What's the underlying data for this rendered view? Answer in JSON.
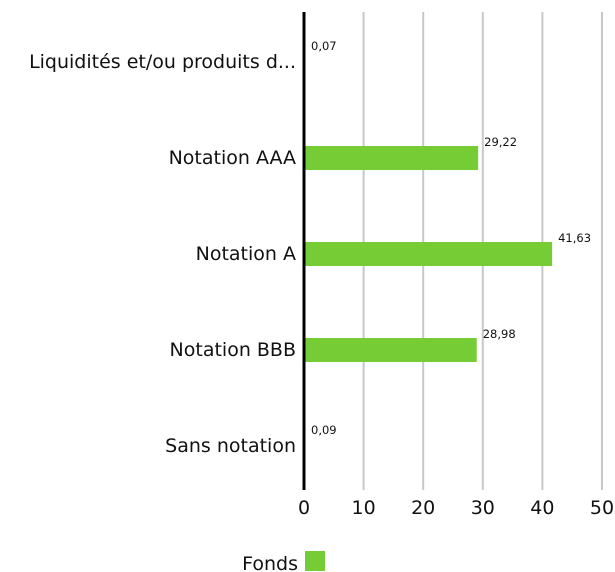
{
  "chart_data": {
    "type": "bar",
    "orientation": "horizontal",
    "categories": [
      "Liquidités et/ou produits d...",
      "Notation AAA",
      "Notation A",
      "Notation BBB",
      "Sans notation"
    ],
    "series": [
      {
        "name": "Fonds",
        "color": "#76cc35",
        "values": [
          0.07,
          29.22,
          41.63,
          28.98,
          0.09
        ],
        "value_labels": [
          "0,07",
          "29,22",
          "41,63",
          "28,98",
          "0,09"
        ]
      }
    ],
    "xlim": [
      0,
      50
    ],
    "xticks": [
      "0",
      "10",
      "20",
      "30",
      "40",
      "50"
    ],
    "grid": "vertical",
    "legend": "bottom",
    "axis_color": "#000000",
    "grid_color": "#c8c8c8"
  }
}
